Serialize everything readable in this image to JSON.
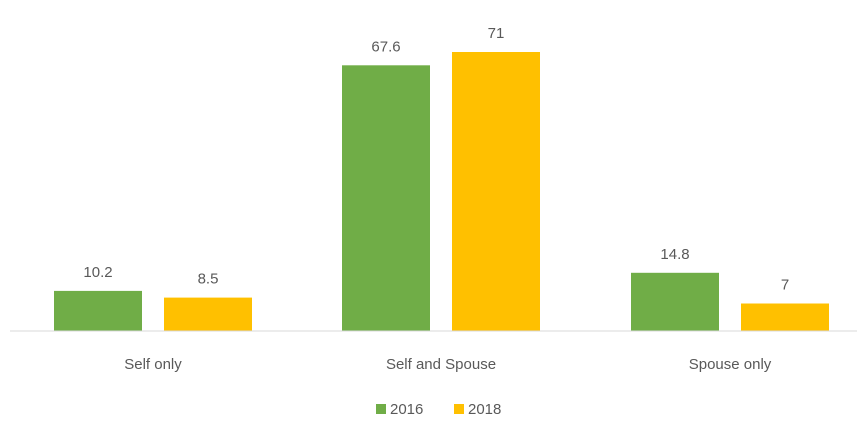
{
  "chart_data": {
    "type": "bar",
    "categories": [
      "Self only",
      "Self and Spouse",
      "Spouse only"
    ],
    "series": [
      {
        "name": "2016",
        "values": [
          10.2,
          67.6,
          14.8
        ],
        "color": "#70ad47"
      },
      {
        "name": "2018",
        "values": [
          8.5,
          71,
          7
        ],
        "color": "#ffc000"
      }
    ],
    "data_labels": [
      [
        "10.2",
        "67.6",
        "14.8"
      ],
      [
        "8.5",
        "71",
        "7"
      ]
    ],
    "title": "",
    "xlabel": "",
    "ylabel": "",
    "ylim": [
      0,
      72
    ],
    "grid": false,
    "legend_position": "bottom"
  }
}
